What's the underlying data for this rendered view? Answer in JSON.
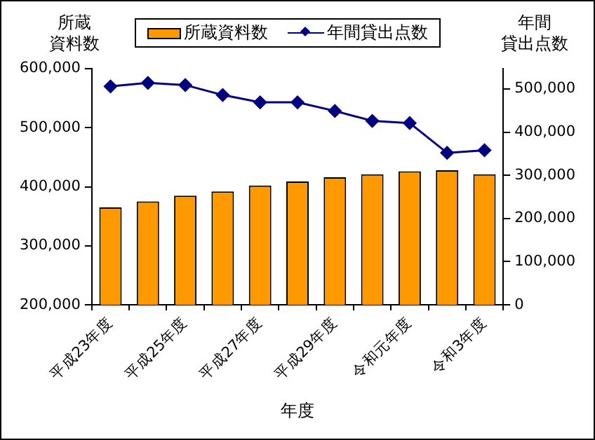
{
  "chart_data": {
    "type": "bar",
    "xlabel": "年度",
    "ylabel": "所蔵資料数",
    "y2label": "年間貸出点数",
    "categories": [
      "平成23年度",
      null,
      "平成25年度",
      null,
      "平成27年度",
      null,
      "平成29年度",
      null,
      "令和元年度",
      null,
      "令和3年度"
    ],
    "series": [
      {
        "name": "所蔵資料数",
        "color": "#ff9900",
        "values": [
          365000,
          375000,
          385000,
          392000,
          402000,
          409000,
          416000,
          421000,
          426000,
          428000,
          421000
        ]
      },
      {
        "name": "年間貸出点数",
        "type": "line",
        "axis": "y2",
        "color": "#000080",
        "marker": "diamond",
        "values": [
          506000,
          514000,
          509000,
          486000,
          469000,
          469000,
          449000,
          426000,
          421000,
          352000,
          358000
        ]
      }
    ],
    "ylim": [
      200000,
      600000
    ],
    "yticks": [
      {
        "value": 200000,
        "label": "200,000"
      },
      {
        "value": 300000,
        "label": "300,000"
      },
      {
        "value": 400000,
        "label": "400,000"
      },
      {
        "value": 500000,
        "label": "500,000"
      },
      {
        "value": 600000,
        "label": "600,000"
      }
    ],
    "y2lim": [
      0,
      547000
    ],
    "y2ticks": [
      0,
      {
        "value": 100000,
        "label": "100,000"
      },
      {
        "value": 200000,
        "label": "200,000"
      },
      {
        "value": 300000,
        "label": "300,000"
      },
      {
        "value": 400000,
        "label": "400,000"
      },
      {
        "value": 500000,
        "label": "500,000"
      }
    ],
    "grid": false,
    "legend": "top"
  }
}
